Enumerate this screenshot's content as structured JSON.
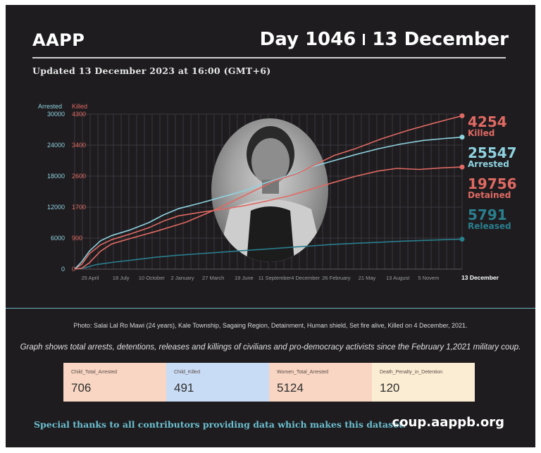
{
  "header": {
    "brand": "AAPP",
    "day": "Day 1046",
    "date": "13 December",
    "updated": "Updated 13 December 2023 at 16:00 (GMT+6)"
  },
  "colors": {
    "arrested": "#8fd3e0",
    "killed": "#e06a63",
    "detained": "#e06a63",
    "released": "#2a7f8f",
    "accent": "#6cbfcf"
  },
  "chart_data": {
    "type": "line",
    "title": "",
    "axes": {
      "left_label": "Arrested",
      "right_label": "Killed",
      "arrested_ticks": [
        "30000",
        "24000",
        "18000",
        "12000",
        "6000",
        "0"
      ],
      "killed_ticks": [
        "4300",
        "3400",
        "2600",
        "1700",
        "900",
        "0"
      ],
      "arrested_range": [
        0,
        30000
      ],
      "killed_range": [
        0,
        4300
      ]
    },
    "x_ticks": [
      "25 April",
      "18 July",
      "10 October",
      "2 January",
      "27 March",
      "19 June",
      "11 September",
      "4 December",
      "26 February",
      "21 May",
      "13 August",
      "5 Novem",
      "13 December"
    ],
    "x_range_days": [
      0,
      1046
    ],
    "series": [
      {
        "name": "Killed",
        "axis": "killed",
        "color": "#e06a63",
        "end_value": "4254",
        "end_label": "Killed",
        "points": [
          [
            0,
            0
          ],
          [
            20,
            30
          ],
          [
            40,
            180
          ],
          [
            70,
            500
          ],
          [
            100,
            700
          ],
          [
            150,
            850
          ],
          [
            220,
            1050
          ],
          [
            300,
            1300
          ],
          [
            380,
            1650
          ],
          [
            460,
            2050
          ],
          [
            500,
            2250
          ],
          [
            540,
            2450
          ],
          [
            600,
            2650
          ],
          [
            650,
            2900
          ],
          [
            700,
            3150
          ],
          [
            760,
            3350
          ],
          [
            830,
            3620
          ],
          [
            900,
            3850
          ],
          [
            970,
            4050
          ],
          [
            1046,
            4254
          ]
        ]
      },
      {
        "name": "Arrested",
        "axis": "arrested",
        "color": "#8fd3e0",
        "end_value": "25547",
        "end_label": "Arrested",
        "points": [
          [
            0,
            0
          ],
          [
            20,
            1500
          ],
          [
            40,
            3500
          ],
          [
            70,
            5500
          ],
          [
            100,
            6500
          ],
          [
            150,
            7600
          ],
          [
            200,
            9000
          ],
          [
            240,
            10500
          ],
          [
            280,
            11700
          ],
          [
            340,
            12800
          ],
          [
            400,
            14000
          ],
          [
            460,
            15200
          ],
          [
            520,
            16800
          ],
          [
            580,
            18200
          ],
          [
            640,
            19800
          ],
          [
            700,
            21000
          ],
          [
            760,
            22200
          ],
          [
            820,
            23300
          ],
          [
            880,
            24200
          ],
          [
            940,
            24900
          ],
          [
            1000,
            25300
          ],
          [
            1046,
            25547
          ]
        ]
      },
      {
        "name": "Detained",
        "axis": "arrested",
        "color": "#e06a63",
        "end_value": "19756",
        "end_label": "Detained",
        "points": [
          [
            0,
            0
          ],
          [
            20,
            1000
          ],
          [
            40,
            3000
          ],
          [
            70,
            4700
          ],
          [
            100,
            5700
          ],
          [
            150,
            6800
          ],
          [
            200,
            8000
          ],
          [
            240,
            9300
          ],
          [
            280,
            10300
          ],
          [
            340,
            11000
          ],
          [
            400,
            11600
          ],
          [
            460,
            12300
          ],
          [
            520,
            13200
          ],
          [
            580,
            14200
          ],
          [
            640,
            15500
          ],
          [
            700,
            16800
          ],
          [
            760,
            18000
          ],
          [
            820,
            19000
          ],
          [
            870,
            19500
          ],
          [
            930,
            19300
          ],
          [
            990,
            19600
          ],
          [
            1046,
            19756
          ]
        ]
      },
      {
        "name": "Released",
        "axis": "arrested",
        "color": "#2a7f8f",
        "end_value": "5791",
        "end_label": "Released",
        "points": [
          [
            0,
            0
          ],
          [
            30,
            300
          ],
          [
            60,
            900
          ],
          [
            100,
            1300
          ],
          [
            160,
            1800
          ],
          [
            220,
            2300
          ],
          [
            280,
            2700
          ],
          [
            340,
            3000
          ],
          [
            400,
            3300
          ],
          [
            460,
            3600
          ],
          [
            520,
            3900
          ],
          [
            580,
            4200
          ],
          [
            640,
            4500
          ],
          [
            700,
            4800
          ],
          [
            760,
            5000
          ],
          [
            820,
            5200
          ],
          [
            880,
            5400
          ],
          [
            940,
            5550
          ],
          [
            1000,
            5700
          ],
          [
            1046,
            5791
          ]
        ]
      }
    ]
  },
  "caption": "Photo: Salai Lal Ro Mawi (24 years), Kale Township, Sagaing Region, Detainment, Human shield, Set fire alive, Killed on 4 December, 2021.",
  "description": "Graph shows total arrests, detentions, releases and killings of civilians and pro-democracy activists since the February 1,2021 military coup.",
  "stats": [
    {
      "label": "Child_Total_Arrested",
      "value": "706",
      "bg": "#f8d6c3"
    },
    {
      "label": "Child_Killed",
      "value": "491",
      "bg": "#c9dcf5"
    },
    {
      "label": "Women_Total_Arrested",
      "value": "5124",
      "bg": "#f8d6c3"
    },
    {
      "label": "Death_Penalty_in_Detention",
      "value": "120",
      "bg": "#fbedd3"
    }
  ],
  "footer": {
    "thanks": "Special thanks to all contributors providing data which makes this dataset.",
    "site": "coup.aappb.org"
  }
}
